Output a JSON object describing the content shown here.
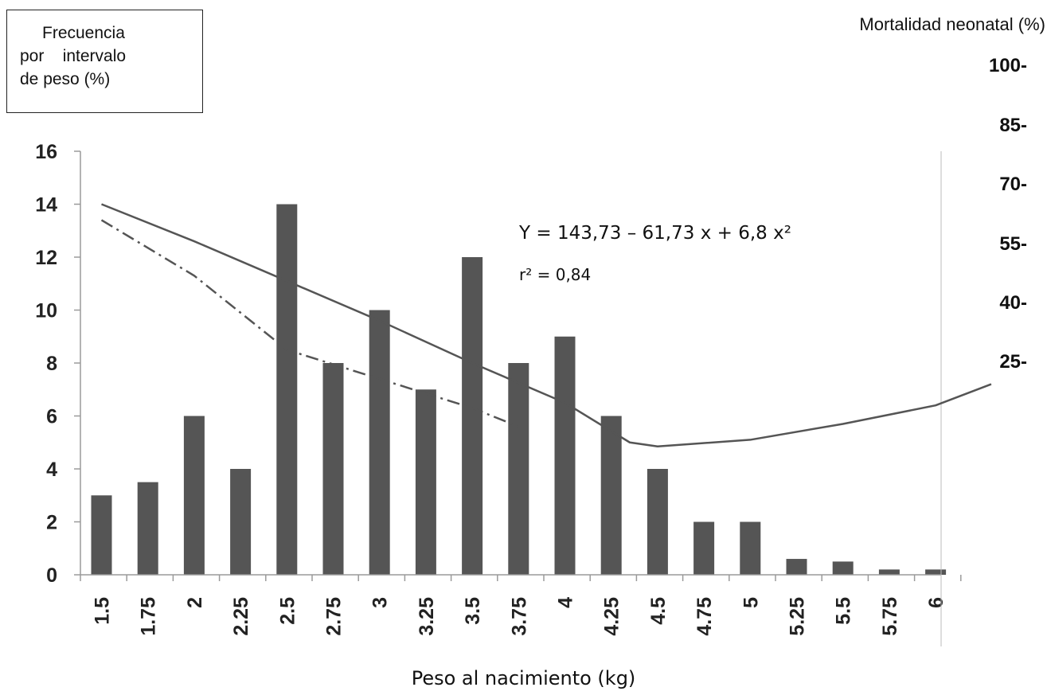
{
  "chart_data": {
    "type": "bar",
    "left_axis_title": [
      "Frecuencia",
      "por    intervalo",
      "de peso (%)"
    ],
    "right_axis_title": "Mortalidad neonatal (%)",
    "xlabel": "Peso al nacimiento (kg)",
    "categories": [
      "1.5",
      "1.75",
      "2",
      "2.25",
      "2.5",
      "2.75",
      "3",
      "3.25",
      "3.5",
      "3.75",
      "4",
      "4.25",
      "4.5",
      "4.75",
      "5",
      "5.25",
      "5.5",
      "5.75",
      "6"
    ],
    "values": [
      3,
      3.5,
      6,
      4,
      14,
      8,
      10,
      7,
      12,
      8,
      9,
      6,
      4,
      2,
      2,
      0.6,
      0.5,
      0.2,
      0.2
    ],
    "ylim": [
      0,
      16
    ],
    "yticks": [
      "0",
      "2",
      "4",
      "6",
      "8",
      "10",
      "12",
      "14",
      "16"
    ],
    "right_ticks": [
      "100-",
      "85-",
      "70-",
      "55-",
      "40-",
      "25-"
    ],
    "solid_line": {
      "x": [
        1.5,
        2.0,
        2.5,
        3.0,
        3.5,
        4.0,
        4.35,
        4.5,
        5.0,
        5.5,
        6.0,
        6.3
      ],
      "y": [
        14,
        12.6,
        11.1,
        9.6,
        8.0,
        6.5,
        5.0,
        4.85,
        5.1,
        5.7,
        6.4,
        7.2
      ]
    },
    "dashdot_line": {
      "x": [
        1.5,
        2.0,
        2.5,
        3.0,
        3.5,
        3.75
      ],
      "y": [
        13.4,
        11.3,
        8.5,
        7.4,
        6.3,
        5.6
      ]
    },
    "annotations": {
      "equation": "Y = 143,73 – 61,73 x + 6,8 x²",
      "r2": "r² = 0,84"
    },
    "grid": false,
    "bar_color": "#555555",
    "line_color": "#555555"
  }
}
